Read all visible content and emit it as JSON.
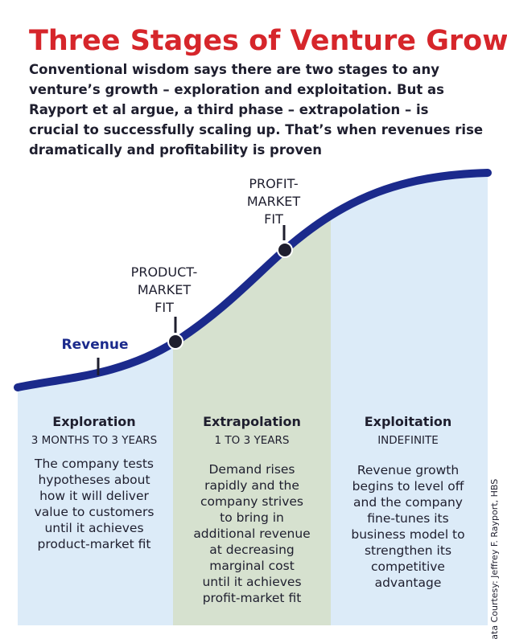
{
  "header": {
    "title": "Three Stages of Venture Growth",
    "intro": [
      "Conventional wisdom says there are two stages to any",
      "venture’s growth – exploration and exploitation. But as",
      "Rayport et al argue, a third phase – extrapolation – is",
      "crucial to successfully scaling up. That’s when revenues rise",
      "dramatically and profitability is proven"
    ]
  },
  "curve": {
    "label": "Revenue",
    "milestones": [
      {
        "label": [
          "PRODUCT-",
          "MARKET",
          "FIT"
        ]
      },
      {
        "label": [
          "PROFIT-",
          "MARKET",
          "FIT"
        ]
      }
    ]
  },
  "stages": [
    {
      "name": "Exploration",
      "duration": "3 MONTHS TO 3 YEARS",
      "description": [
        "The company tests",
        "hypotheses about",
        "how it will deliver",
        "value to customers",
        "until it achieves",
        "product-market fit"
      ]
    },
    {
      "name": "Extrapolation",
      "duration": "1 TO 3 YEARS",
      "description": [
        "Demand rises",
        "rapidly and the",
        "company strives",
        "to bring in",
        "additional revenue",
        "at decreasing",
        "marginal cost",
        "until it achieves",
        "profit-market fit"
      ]
    },
    {
      "name": "Exploitation",
      "duration": "INDEFINITE",
      "description": [
        "Revenue growth",
        "begins to level off",
        "and the company",
        "fine-tunes its",
        "business model to",
        "strengthen its",
        "competitive",
        "advantage"
      ]
    }
  ],
  "credit": "Data Courtesy: Jeffrey F. Rayport, HBS"
}
